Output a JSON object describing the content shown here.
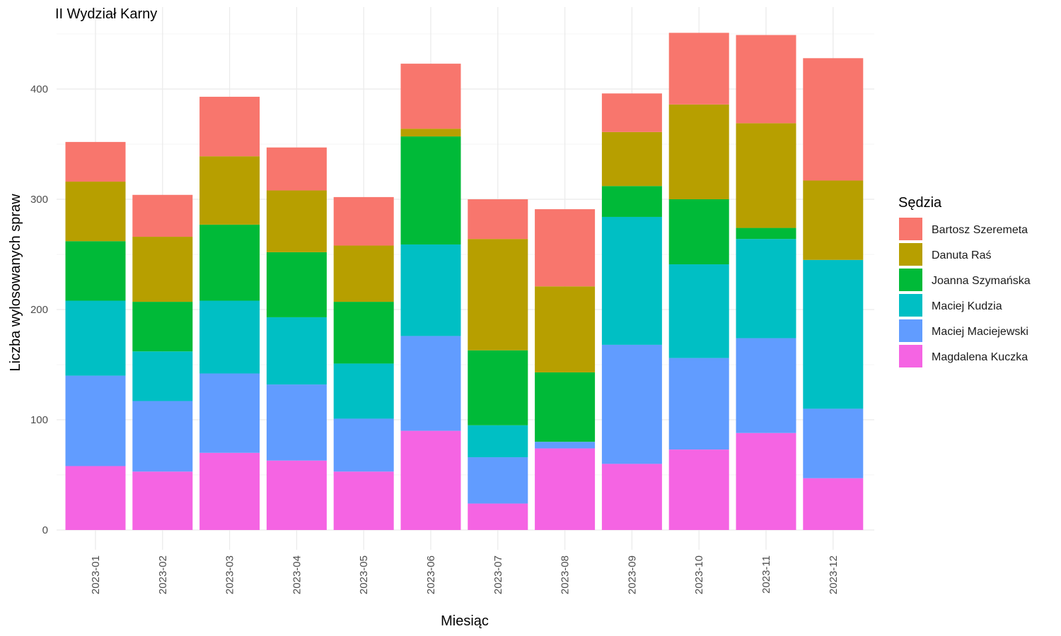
{
  "chart_data": {
    "type": "bar",
    "stacked": true,
    "title": "II Wydział Karny",
    "xlabel": "Miesiąc",
    "ylabel": "Liczba wylosowanych spraw",
    "ylim": [
      0,
      460
    ],
    "yticks": [
      0,
      100,
      200,
      300,
      400
    ],
    "grid": true,
    "legend_title": "Sędzia",
    "legend_position": "right",
    "categories": [
      "2023-01",
      "2023-02",
      "2023-03",
      "2023-04",
      "2023-05",
      "2023-06",
      "2023-07",
      "2023-08",
      "2023-09",
      "2023-10",
      "2023-11",
      "2023-12"
    ],
    "series": [
      {
        "name": "Magdalena Kuczka",
        "color": "#F564E3",
        "values": [
          58,
          53,
          70,
          63,
          53,
          90,
          24,
          74,
          60,
          73,
          88,
          47
        ]
      },
      {
        "name": "Maciej Maciejewski",
        "color": "#619CFF",
        "values": [
          82,
          64,
          72,
          69,
          48,
          86,
          42,
          6,
          108,
          83,
          86,
          63
        ]
      },
      {
        "name": "Maciej Kudzia",
        "color": "#00BFC4",
        "values": [
          68,
          45,
          66,
          61,
          50,
          83,
          29,
          0,
          116,
          85,
          90,
          135
        ]
      },
      {
        "name": "Joanna Szymańska",
        "color": "#00BA38",
        "values": [
          54,
          45,
          69,
          59,
          56,
          98,
          68,
          63,
          28,
          59,
          10,
          0
        ]
      },
      {
        "name": "Danuta Raś",
        "color": "#B79F00",
        "values": [
          54,
          59,
          62,
          56,
          51,
          7,
          101,
          78,
          49,
          86,
          95,
          72
        ]
      },
      {
        "name": "Bartosz Szeremeta",
        "color": "#F8766D",
        "values": [
          36,
          38,
          54,
          39,
          44,
          59,
          36,
          70,
          35,
          65,
          80,
          111
        ]
      }
    ],
    "legend_order": [
      "Bartosz Szeremeta",
      "Danuta Raś",
      "Joanna Szymańska",
      "Maciej Kudzia",
      "Maciej Maciejewski",
      "Magdalena Kuczka"
    ]
  }
}
